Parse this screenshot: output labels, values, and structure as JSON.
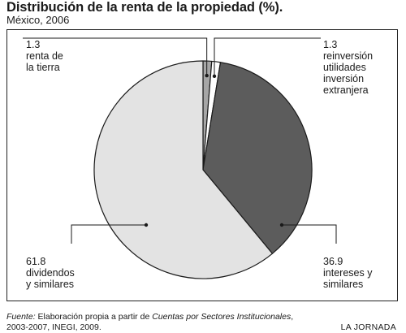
{
  "title": "Distribución de la renta de la propiedad (%).",
  "subtitle": "México, 2006",
  "chart_data": {
    "type": "pie",
    "title": "Distribución de la renta de la propiedad (%).",
    "subtitle": "México, 2006",
    "slices": [
      {
        "value": 1.3,
        "value_label": "1.3",
        "label": "renta de\nla tierra",
        "color": "#a6a6a6"
      },
      {
        "value": 1.3,
        "value_label": "1.3",
        "label": "reinversión\nutilidades\ninversión\nextranjera",
        "color": "#ffffff"
      },
      {
        "value": 36.9,
        "value_label": "36.9",
        "label": "intereses y\nsimilares",
        "color": "#5c5c5c"
      },
      {
        "value": 61.8,
        "value_label": "61.8",
        "label": "dividendos\ny similares",
        "color": "#e3e3e3"
      }
    ]
  },
  "footer": {
    "source_label": "Fuente:",
    "source_pre": " Elaboración propia a partir de ",
    "source_title": "Cuentas por Sectores Institucionales",
    "source_post": ",",
    "source_line2": "2003-2007, INEGI, 2009.",
    "brand": "LA JORNADA"
  }
}
